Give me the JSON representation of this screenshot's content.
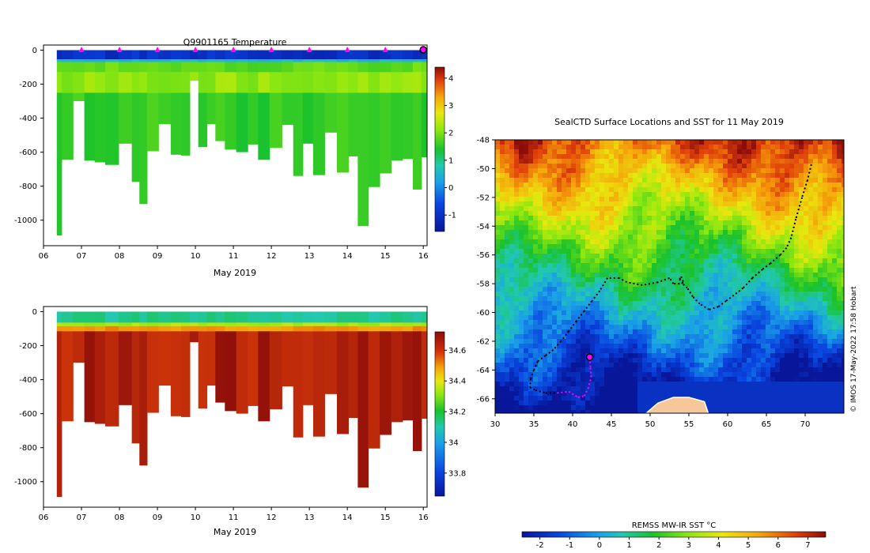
{
  "colors": {
    "sea_deep": "#0a1a9a",
    "sea_blue": "#1f6fe0",
    "sea_cyan": "#26c3d8",
    "green": "#19c22c",
    "bright_green": "#8fe810",
    "salinity_red": "#c21f0a",
    "land": "#f6c79a",
    "track": "#000000",
    "marker": "#ff00ff"
  },
  "chart_data": [
    {
      "type": "heatmap",
      "name": "temperature_section",
      "title": "Q9901165  Temperature",
      "xlabel": "May 2019",
      "ylabel": "",
      "xlim": [
        6,
        16.1
      ],
      "ylim": [
        -1150,
        30
      ],
      "x_ticks": [
        "06",
        "07",
        "08",
        "09",
        "10",
        "11",
        "12",
        "13",
        "14",
        "15",
        "16"
      ],
      "x_tick_values": [
        6,
        7,
        8,
        9,
        10,
        11,
        12,
        13,
        14,
        15,
        16
      ],
      "y_ticks": [
        "0",
        "-200",
        "-400",
        "-600",
        "-800",
        "-1000"
      ],
      "y_tick_values": [
        0,
        -200,
        -400,
        -600,
        -800,
        -1000
      ],
      "colorbar": {
        "ticks": [
          "-1",
          "0",
          "1",
          "2",
          "3",
          "4"
        ],
        "tick_values": [
          -1,
          0,
          1,
          2,
          3,
          4
        ],
        "range": [
          -1.6,
          4.4
        ]
      },
      "profile_times": [
        6.35,
        6.6,
        6.95,
        7.2,
        7.5,
        7.75,
        8.2,
        8.45,
        8.6,
        8.85,
        9.2,
        9.5,
        9.75,
        9.95,
        10.2,
        10.4,
        10.65,
        10.9,
        11.25,
        11.5,
        11.8,
        12.1,
        12.45,
        12.7,
        12.95,
        13.25,
        13.55,
        13.9,
        14.15,
        14.4,
        14.7,
        15.0,
        15.3,
        15.6,
        15.85,
        16.05
      ],
      "profile_max_depth": [
        -1090,
        -645,
        -300,
        -650,
        -660,
        -675,
        -550,
        -775,
        -905,
        -595,
        -435,
        -615,
        -620,
        -180,
        -570,
        -435,
        -535,
        -585,
        -600,
        -555,
        -645,
        -575,
        -440,
        -740,
        -550,
        -735,
        -485,
        -720,
        -625,
        -1035,
        -805,
        -725,
        -650,
        -640,
        -820,
        -630
      ],
      "marker_times": [
        7,
        8,
        9,
        10,
        11,
        12,
        13,
        14,
        15
      ],
      "latest_marker_time": 16,
      "layers": [
        {
          "top": 0,
          "bottom": -55,
          "value": -1.2
        },
        {
          "top": -55,
          "bottom": -70,
          "value": 0.3
        },
        {
          "top": -70,
          "bottom": -130,
          "value": 1.6
        },
        {
          "top": -130,
          "bottom": -250,
          "value": 1.9
        },
        {
          "top": -250,
          "bottom": -1100,
          "value": 1.3
        }
      ]
    },
    {
      "type": "heatmap",
      "name": "salinity_section",
      "title": "",
      "xlabel": "May 2019",
      "ylabel": "",
      "xlim": [
        6,
        16.1
      ],
      "ylim": [
        -1150,
        30
      ],
      "x_ticks": [
        "06",
        "07",
        "08",
        "09",
        "10",
        "11",
        "12",
        "13",
        "14",
        "15",
        "16"
      ],
      "x_tick_values": [
        6,
        7,
        8,
        9,
        10,
        11,
        12,
        13,
        14,
        15,
        16
      ],
      "y_ticks": [
        "0",
        "-200",
        "-400",
        "-600",
        "-800",
        "-1000"
      ],
      "y_tick_values": [
        0,
        -200,
        -400,
        -600,
        -800,
        -1000
      ],
      "colorbar": {
        "ticks": [
          "33.8",
          "34",
          "34.2",
          "34.4",
          "34.6"
        ],
        "tick_values": [
          33.8,
          34.0,
          34.2,
          34.4,
          34.6
        ],
        "range": [
          33.65,
          34.72
        ]
      },
      "layers": [
        {
          "top": 0,
          "bottom": -65,
          "value": 34.05
        },
        {
          "top": -65,
          "bottom": -85,
          "value": 34.3
        },
        {
          "top": -85,
          "bottom": -115,
          "value": 34.52
        },
        {
          "top": -115,
          "bottom": -1100,
          "value": 34.68
        }
      ]
    },
    {
      "type": "heatmap",
      "name": "sst_map",
      "title": "SealCTD Surface Locations and SST for 11 May 2019",
      "xlabel": "",
      "ylabel": "",
      "xlim": [
        30,
        75
      ],
      "ylim": [
        -67,
        -48
      ],
      "x_ticks": [
        "30",
        "35",
        "40",
        "45",
        "50",
        "55",
        "60",
        "65",
        "70"
      ],
      "x_tick_values": [
        30,
        35,
        40,
        45,
        50,
        55,
        60,
        65,
        70
      ],
      "y_ticks": [
        "-48",
        "-50",
        "-52",
        "-54",
        "-56",
        "-58",
        "-60",
        "-62",
        "-64",
        "-66"
      ],
      "y_tick_values": [
        -48,
        -50,
        -52,
        -54,
        -56,
        -58,
        -60,
        -62,
        -64,
        -66
      ],
      "colorbar": {
        "label": "REMSS MW-IR SST °C",
        "ticks": [
          "-2",
          "-1",
          "0",
          "1",
          "2",
          "3",
          "4",
          "5",
          "6",
          "7"
        ],
        "tick_values": [
          -2,
          -1,
          0,
          1,
          2,
          3,
          4,
          5,
          6,
          7
        ],
        "range": [
          -2.6,
          7.6
        ]
      },
      "credit": "© IMOS 17-May-2022 17:58 Hobart",
      "track": {
        "lon": [
          70.8,
          70.3,
          69.6,
          68.8,
          68.2,
          67.6,
          66.8,
          65.5,
          64.5,
          63.2,
          62.0,
          60.8,
          59.8,
          58.8,
          57.6,
          56.4,
          55.5,
          54.8,
          54.2,
          53.8,
          54.0,
          54.3,
          53.8,
          53.0,
          52.5,
          51.0,
          49.0,
          48.0,
          47.0,
          46.0,
          44.5,
          43.5,
          42.5,
          41.5,
          40.5,
          39.5,
          38.5,
          37.5,
          36.5,
          35.5,
          35.0,
          34.6,
          34.5,
          35.2,
          36.5,
          38.0,
          39.5,
          40.7,
          41.5,
          42.0,
          42.4,
          42.3,
          42.2
        ],
        "lat": [
          -49.7,
          -50.8,
          -52.0,
          -53.5,
          -54.8,
          -55.5,
          -56.0,
          -56.6,
          -57.0,
          -57.6,
          -58.3,
          -58.8,
          -59.2,
          -59.6,
          -59.8,
          -59.4,
          -58.9,
          -58.3,
          -58.0,
          -57.7,
          -57.5,
          -57.9,
          -58.0,
          -58.0,
          -57.6,
          -57.9,
          -58.1,
          -58.0,
          -57.9,
          -57.6,
          -57.6,
          -58.5,
          -59.2,
          -59.9,
          -60.6,
          -61.3,
          -62.0,
          -62.6,
          -63.0,
          -63.4,
          -64.0,
          -64.6,
          -65.2,
          -65.4,
          -65.6,
          -65.6,
          -65.5,
          -65.9,
          -65.8,
          -65.3,
          -64.5,
          -63.8,
          -63.1
        ],
        "recent_start_index": 45,
        "end_marker": {
          "lon": 42.2,
          "lat": -63.1
        }
      },
      "land_mask": {
        "lon": [
          49.5,
          51,
          53,
          55,
          57,
          57.5,
          56,
          53,
          50,
          49.5
        ],
        "lat": [
          -67,
          -66.3,
          -65.9,
          -65.9,
          -66.2,
          -67,
          -67,
          -67,
          -67,
          -67
        ]
      }
    }
  ]
}
